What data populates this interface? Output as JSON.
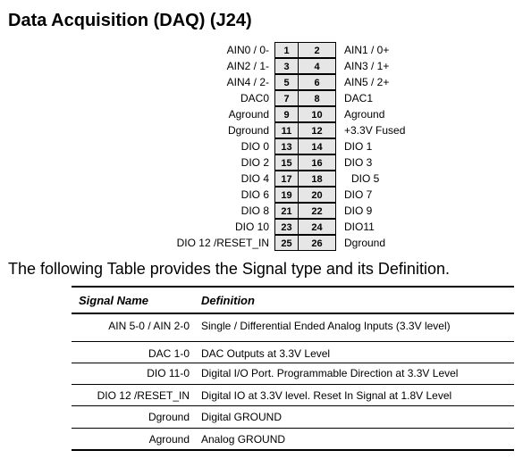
{
  "title": "Data Acquisition (DAQ) (J24)",
  "pins": [
    {
      "left": "AIN0 / 0-",
      "odd": "1",
      "even": "2",
      "right": "AIN1 / 0+"
    },
    {
      "left": "AIN2 / 1-",
      "odd": "3",
      "even": "4",
      "right": "AIN3 / 1+"
    },
    {
      "left": "AIN4 / 2-",
      "odd": "5",
      "even": "6",
      "right": "AIN5 / 2+"
    },
    {
      "left": "DAC0",
      "odd": "7",
      "even": "8",
      "right": "DAC1"
    },
    {
      "left": "Aground",
      "odd": "9",
      "even": "10",
      "right": "Aground"
    },
    {
      "left": "Dground",
      "odd": "11",
      "even": "12",
      "right": "+3.3V Fused"
    },
    {
      "left": "DIO 0",
      "odd": "13",
      "even": "14",
      "right": "DIO 1"
    },
    {
      "left": "DIO 2",
      "odd": "15",
      "even": "16",
      "right": "DIO 3"
    },
    {
      "left": "DIO 4",
      "odd": "17",
      "even": "18",
      "right": "DIO 5"
    },
    {
      "left": "DIO 6",
      "odd": "19",
      "even": "20",
      "right": "DIO 7"
    },
    {
      "left": "DIO 8",
      "odd": "21",
      "even": "22",
      "right": "DIO 9"
    },
    {
      "left": "DIO 10",
      "odd": "23",
      "even": "24",
      "right": "DIO11"
    },
    {
      "left": "DIO 12 /RESET_IN",
      "odd": "25",
      "even": "26",
      "right": "Dground"
    }
  ],
  "intro": "The following Table provides the Signal type and its Definition.",
  "table": {
    "headers": {
      "name": "Signal Name",
      "definition": "Definition"
    },
    "rows": [
      {
        "name": "AIN 5-0 / AIN 2-0",
        "definition": "Single / Differential Ended Analog Inputs (3.3V level)"
      },
      {
        "name": "DAC 1-0",
        "definition": "DAC Outputs at 3.3V Level"
      },
      {
        "name": "DIO 11-0",
        "definition": "Digital I/O Port. Programmable Direction at 3.3V Level"
      },
      {
        "name": "DIO 12 /RESET_IN",
        "definition": "Digital IO at 3.3V level. Reset In Signal at 1.8V Level"
      },
      {
        "name": "Dground",
        "definition": "Digital GROUND"
      },
      {
        "name": "Aground",
        "definition": "Analog GROUND"
      }
    ]
  }
}
